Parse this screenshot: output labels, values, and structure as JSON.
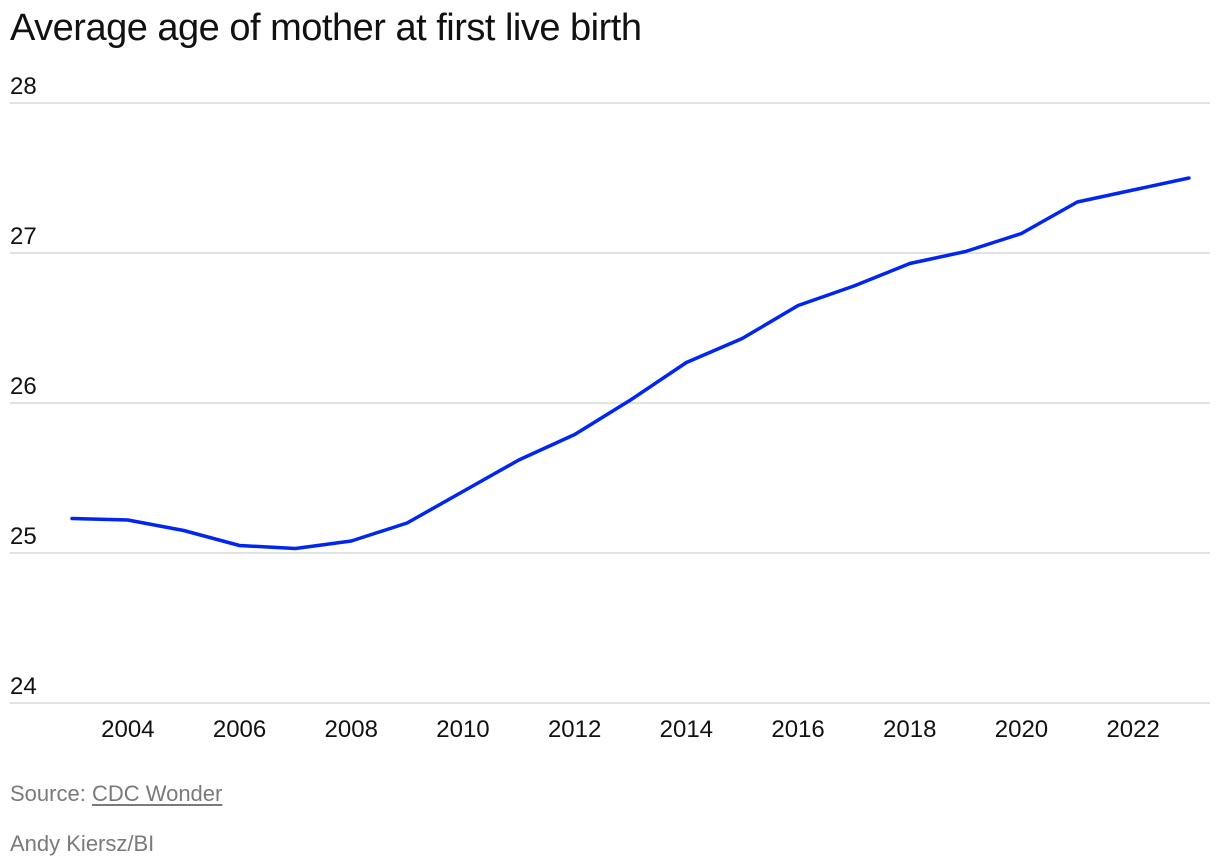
{
  "header": {
    "title": "Average age of mother at first live birth"
  },
  "footer": {
    "source_prefix": "Source: ",
    "source_link": "CDC Wonder",
    "credit": "Andy Kiersz/BI"
  },
  "colors": {
    "line": "#0026f0",
    "grid": "#d9d9d9",
    "tick_text": "#111111",
    "footer_text": "#7a7a7a"
  },
  "chart_data": {
    "type": "line",
    "title": "Average age of mother at first live birth",
    "xlabel": "",
    "ylabel": "",
    "xlim": [
      2003,
      2023
    ],
    "ylim": [
      24,
      28
    ],
    "grid": true,
    "x": [
      2003,
      2004,
      2005,
      2006,
      2007,
      2008,
      2009,
      2010,
      2011,
      2012,
      2013,
      2014,
      2015,
      2016,
      2017,
      2018,
      2019,
      2020,
      2021,
      2022,
      2023
    ],
    "y_ticks": [
      24,
      25,
      26,
      27,
      28
    ],
    "x_ticks": [
      2004,
      2006,
      2008,
      2010,
      2012,
      2014,
      2016,
      2018,
      2020,
      2022
    ],
    "series": [
      {
        "values": [
          25.23,
          25.22,
          25.15,
          25.05,
          25.03,
          25.08,
          25.2,
          25.41,
          25.62,
          25.79,
          26.02,
          26.27,
          26.43,
          26.65,
          26.78,
          26.93,
          27.01,
          27.13,
          27.34,
          27.42,
          27.5
        ]
      }
    ]
  }
}
